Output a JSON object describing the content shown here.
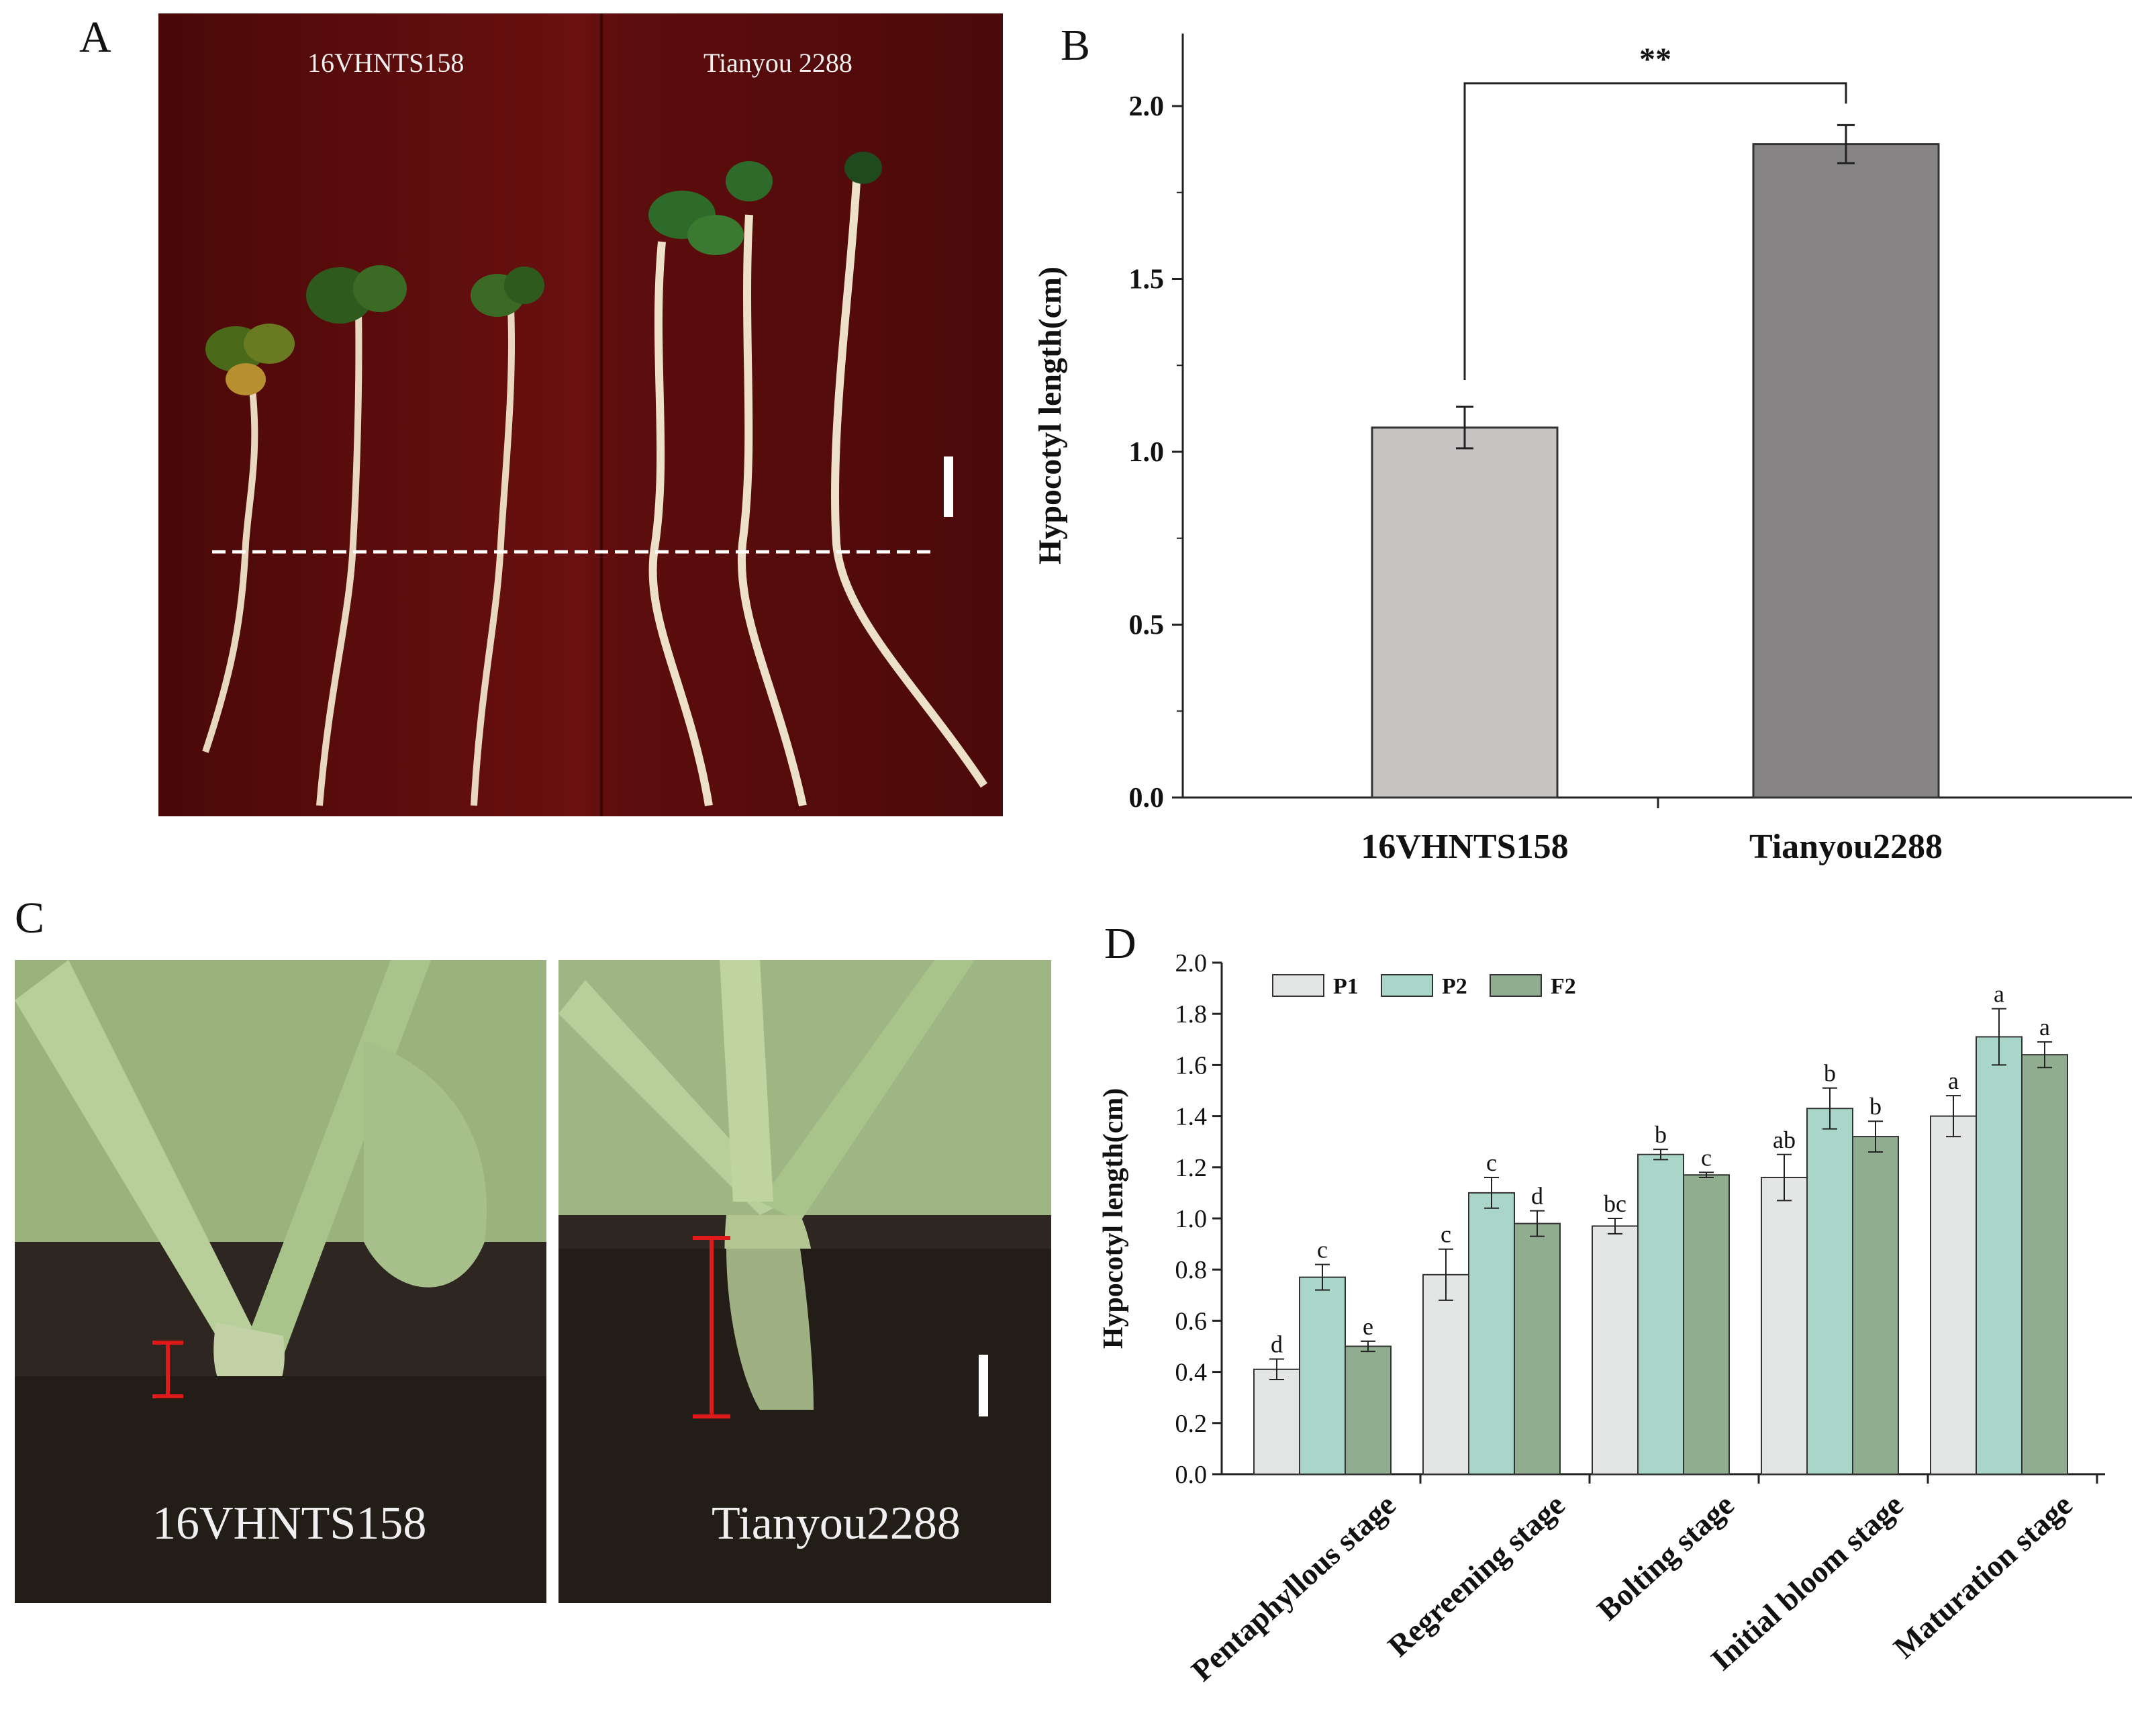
{
  "panels": {
    "A": {
      "letter": "A",
      "labels": [
        "16VHNTS158",
        "Tianyou 2288"
      ]
    },
    "B": {
      "letter": "B"
    },
    "C": {
      "letter": "C",
      "labels": [
        "16VHNTS158",
        "Tianyou2288"
      ]
    },
    "D": {
      "letter": "D"
    }
  },
  "colors": {
    "barB1": "#c8c4c4",
    "barB2": "#868484",
    "P1": "#e4e6e6",
    "P2": "#a9d6c9",
    "F2": "#90ad8f",
    "photoA_bg": "#5a0c0c",
    "soil": "#2a2520",
    "measure": "#e01a1a"
  },
  "chart_data": [
    {
      "id": "B",
      "type": "bar",
      "categories": [
        "16VHNTS158",
        "Tianyou2288"
      ],
      "values": [
        1.07,
        1.89
      ],
      "errors": [
        0.06,
        0.055
      ],
      "ylabel": "Hypocotyl length(cm)",
      "ylim": [
        0,
        2.2
      ],
      "yticks": [
        "0.0",
        "0.5",
        "1.0",
        "1.5",
        "2.0"
      ],
      "significance": "**"
    },
    {
      "id": "D",
      "type": "bar",
      "categories": [
        "Pentaphyllous stage",
        "Regreening stage",
        "Bolting stage",
        "Initial bloom stage",
        "Maturation stage"
      ],
      "series": [
        {
          "name": "P1",
          "values": [
            0.41,
            0.78,
            0.97,
            1.16,
            1.4
          ],
          "errors": [
            0.04,
            0.1,
            0.03,
            0.09,
            0.08
          ],
          "letters": [
            "d",
            "c",
            "bc",
            "ab",
            "a"
          ]
        },
        {
          "name": "P2",
          "values": [
            0.77,
            1.1,
            1.25,
            1.43,
            1.71
          ],
          "errors": [
            0.05,
            0.06,
            0.02,
            0.08,
            0.11
          ],
          "letters": [
            "c",
            "c",
            "b",
            "b",
            "a"
          ]
        },
        {
          "name": "F2",
          "values": [
            0.5,
            0.98,
            1.17,
            1.32,
            1.64
          ],
          "errors": [
            0.02,
            0.05,
            0.01,
            0.06,
            0.05
          ],
          "letters": [
            "e",
            "d",
            "c",
            "b",
            "a"
          ]
        }
      ],
      "ylabel": "Hypocotyl length(cm)",
      "ylim": [
        0,
        2.0
      ],
      "yticks": [
        "0.0",
        "0.2",
        "0.4",
        "0.6",
        "0.8",
        "1.0",
        "1.2",
        "1.4",
        "1.6",
        "1.8",
        "2.0"
      ],
      "legend": "top-left"
    }
  ]
}
